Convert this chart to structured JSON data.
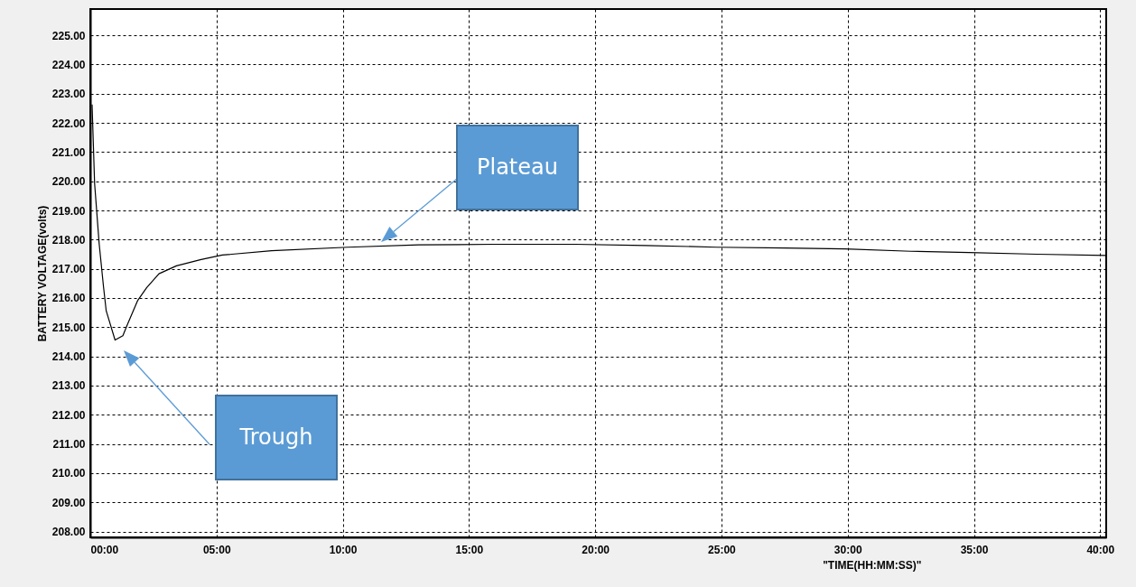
{
  "chart_data": {
    "type": "line",
    "xlabel": "\"TIME(HH:MM:SS)\"",
    "ylabel": "BATTERY VOLTAGE(volts)",
    "x": [
      0.07,
      0.17,
      0.35,
      0.52,
      0.63,
      0.98,
      1.29,
      1.46,
      1.88,
      2.23,
      2.72,
      3.41,
      4.39,
      5.23,
      7.18,
      10.2,
      13,
      16,
      19.2,
      22,
      24.8,
      27.5,
      29.9,
      32.5,
      34.8,
      37.5,
      40.24
    ],
    "series": [
      {
        "color": "#000000",
        "values": [
          222.63,
          219.93,
          217.87,
          216.41,
          215.56,
          214.56,
          214.71,
          215.07,
          215.92,
          216.35,
          216.83,
          217.1,
          217.32,
          217.47,
          217.62,
          217.74,
          217.82,
          217.84,
          217.84,
          217.8,
          217.74,
          217.71,
          217.68,
          217.6,
          217.56,
          217.5,
          217.46
        ]
      }
    ],
    "xlim": [
      0,
      40.24
    ],
    "xticks": [
      {
        "value": 0,
        "label": "00:00"
      },
      {
        "value": 5,
        "label": "05:00"
      },
      {
        "value": 10,
        "label": "10:00"
      },
      {
        "value": 15,
        "label": "15:00"
      },
      {
        "value": 20,
        "label": "20:00"
      },
      {
        "value": 25,
        "label": "25:00"
      },
      {
        "value": 30,
        "label": "30:00"
      },
      {
        "value": 35,
        "label": "35:00"
      },
      {
        "value": 40,
        "label": "40:00"
      }
    ],
    "ylim": [
      207.8,
      225.9
    ],
    "yticks": [
      {
        "value": 208,
        "label": "208.00"
      },
      {
        "value": 209,
        "label": "209.00"
      },
      {
        "value": 210,
        "label": "210.00"
      },
      {
        "value": 211,
        "label": "211.00"
      },
      {
        "value": 212,
        "label": "212.00"
      },
      {
        "value": 213,
        "label": "213.00"
      },
      {
        "value": 214,
        "label": "214.00"
      },
      {
        "value": 215,
        "label": "215.00"
      },
      {
        "value": 216,
        "label": "216.00"
      },
      {
        "value": 217,
        "label": "217.00"
      },
      {
        "value": 218,
        "label": "218.00"
      },
      {
        "value": 219,
        "label": "219.00"
      },
      {
        "value": 220,
        "label": "220.00"
      },
      {
        "value": 221,
        "label": "221.00"
      },
      {
        "value": 222,
        "label": "222.00"
      },
      {
        "value": 223,
        "label": "223.00"
      },
      {
        "value": 224,
        "label": "224.00"
      },
      {
        "value": 225,
        "label": "225.00"
      }
    ],
    "grid": true,
    "line_style": "solid",
    "annotations": [
      "Trough",
      "Plateau"
    ]
  }
}
